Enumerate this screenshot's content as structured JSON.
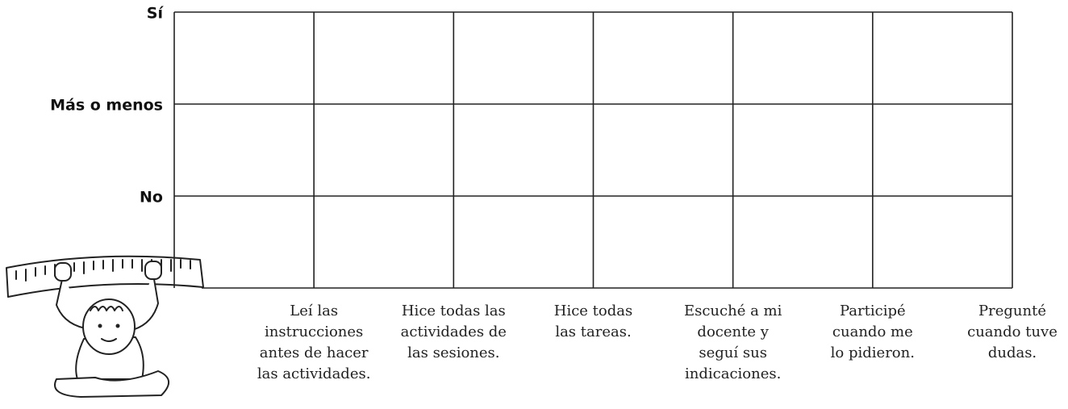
{
  "rows": [
    "Sí",
    "Más o menos",
    "No"
  ],
  "columns": [
    [
      "Leí las",
      "instrucciones",
      "antes de hacer",
      "las actividades."
    ],
    [
      "Hice todas las",
      "actividades de",
      "las sesiones."
    ],
    [
      "Hice todas",
      "las tareas."
    ],
    [
      "Escuché a mi",
      "docente y",
      "seguí sus",
      "indicaciones."
    ],
    [
      "Participé",
      "cuando me",
      "lo pidieron."
    ],
    [
      "Pregunté",
      "cuando tuve",
      "dudas."
    ]
  ]
}
